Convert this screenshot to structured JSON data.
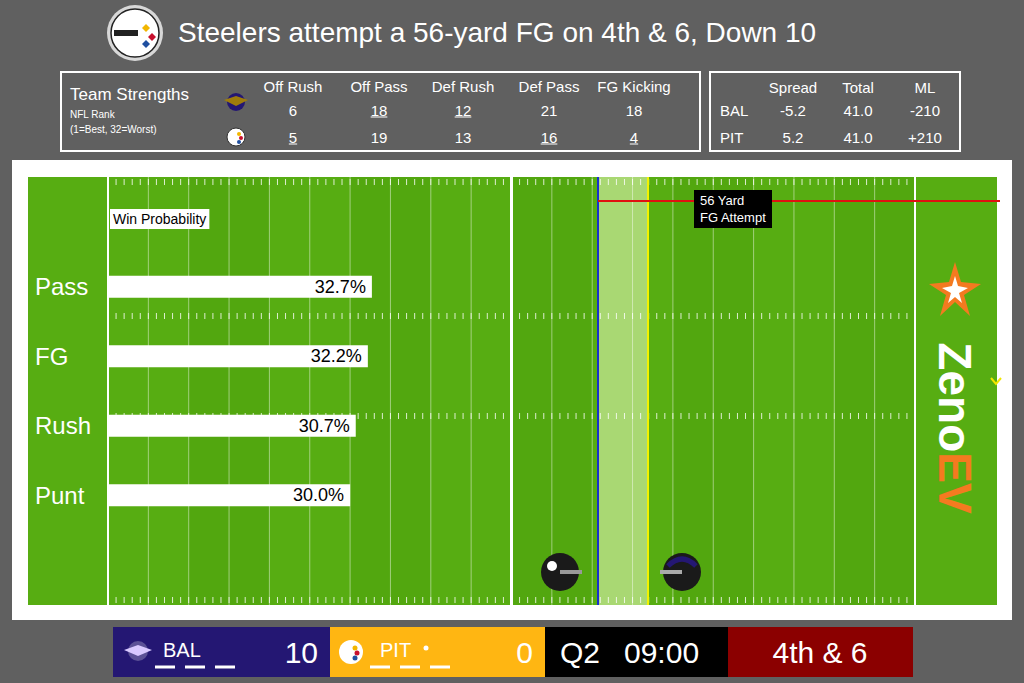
{
  "header": {
    "title": "Steelers attempt a 56-yard FG on 4th & 6, Down 10"
  },
  "team_strengths": {
    "title": "Team Strengths",
    "subtitle": [
      "NFL Rank",
      "(1=Best, 32=Worst)"
    ],
    "columns": [
      "Off Rush",
      "Off Pass",
      "Def Rush",
      "Def Pass",
      "FG Kicking"
    ],
    "rows": [
      [
        6,
        18,
        12,
        21,
        18
      ],
      [
        5,
        19,
        13,
        16,
        4
      ]
    ]
  },
  "odds": {
    "columns": [
      "Spread",
      "Total",
      "ML"
    ],
    "rows": [
      [
        "BAL",
        "-5.2",
        "41.0",
        "-210"
      ],
      [
        "PIT",
        "5.2",
        "41.0",
        "+210"
      ]
    ]
  },
  "chart_data": {
    "type": "bar",
    "orientation": "horizontal",
    "title": "Win Probability",
    "categories": [
      "Pass",
      "FG",
      "Rush",
      "Punt"
    ],
    "values": [
      32.7,
      32.2,
      30.7,
      30.0
    ],
    "value_labels": [
      "32.7%",
      "32.2%",
      "30.7%",
      "30.0%"
    ],
    "color": "#ffffff",
    "xlim": [
      0,
      100
    ],
    "tick_labels": "y",
    "data_labels": true,
    "grid": false
  },
  "annotation": {
    "lines": [
      "56 Yard",
      "FG Attempt"
    ]
  },
  "scoreboard": {
    "away": {
      "team": "BAL",
      "score": 10
    },
    "home": {
      "team": "PIT",
      "score": 0
    },
    "quarter": "Q2",
    "clock": "09:00",
    "down": "4th & 6"
  },
  "brand": [
    "Zeno",
    "EV"
  ]
}
